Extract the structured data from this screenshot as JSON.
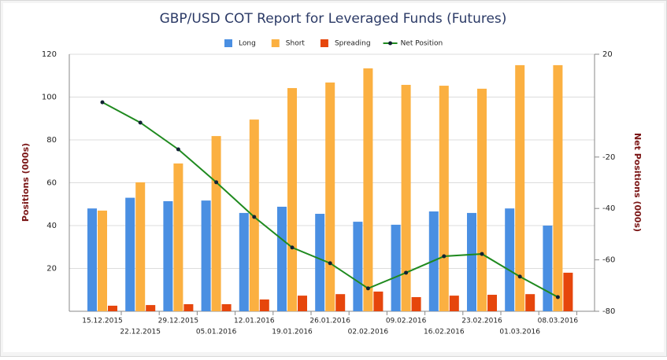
{
  "chart_data": {
    "type": "bar",
    "title": "GBP/USD COT Report for Leveraged Funds (Futures)",
    "y_label": "Positions (000s)",
    "y2_label": "Net Positions (000s)",
    "categories": [
      "15.12.2015",
      "22.12.2015",
      "29.12.2015",
      "05.01.2016",
      "12.01.2016",
      "19.01.2016",
      "26.01.2016",
      "02.02.2016",
      "09.02.2016",
      "16.02.2016",
      "23.02.2016",
      "01.03.2016",
      "08.03.2016"
    ],
    "series": [
      {
        "name": "Long",
        "type": "bar",
        "color": "#4a8fe2",
        "values": [
          48,
          53,
          51.4,
          51.7,
          45.9,
          48.8,
          45.5,
          41.8,
          40.4,
          46.6,
          45.9,
          48,
          40
        ]
      },
      {
        "name": "Short",
        "type": "bar",
        "color": "#fbb041",
        "values": [
          47,
          60.2,
          69,
          81.8,
          89.5,
          104.2,
          106.8,
          113.4,
          105.7,
          105.3,
          103.9,
          114.9,
          114.9
        ]
      },
      {
        "name": "Spreading",
        "type": "bar",
        "color": "#e6460c",
        "values": [
          2.6,
          2.9,
          3.3,
          3.3,
          5.5,
          7.3,
          8,
          9.2,
          6.6,
          7.3,
          7.7,
          8,
          18
        ]
      },
      {
        "name": "Net Position",
        "type": "line",
        "axis": "y2",
        "color": "#1f8a1f",
        "values": [
          1.3,
          -6.6,
          -17,
          -29.8,
          -43.3,
          -55.2,
          -61.3,
          -71.1,
          -65,
          -58.6,
          -57.7,
          -66.5,
          -74.5
        ]
      }
    ],
    "ylim": [
      0,
      120
    ],
    "yticks": [
      20,
      40,
      60,
      80,
      100,
      120
    ],
    "y2lim": [
      -80,
      20
    ],
    "y2ticks": [
      20,
      -20,
      -40,
      -60,
      -80
    ],
    "grid": true,
    "legend": "top"
  }
}
